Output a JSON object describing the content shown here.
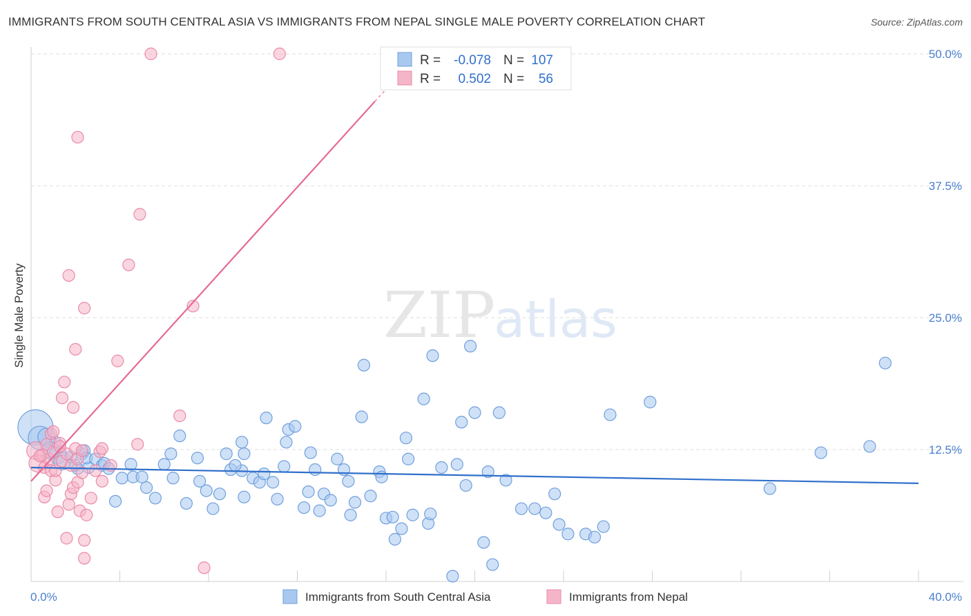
{
  "title": "IMMIGRANTS FROM SOUTH CENTRAL ASIA VS IMMIGRANTS FROM NEPAL SINGLE MALE POVERTY CORRELATION CHART",
  "source": "Source: ZipAtlas.com",
  "watermark": {
    "zip": "ZIP",
    "atlas": "atlas"
  },
  "colors": {
    "blue_fill": "#a8c8f0",
    "blue_stroke": "#6f9fdc",
    "blue_line": "#2f6fcb",
    "pink_fill": "#f5b5c8",
    "pink_stroke": "#e98aa8",
    "pink_line": "#e46a93",
    "tick_label": "#4a7fd0",
    "grid": "#dddddd"
  },
  "stats_box": {
    "rows": [
      {
        "r_label": "R =",
        "r_value": "-0.078",
        "n_label": "N =",
        "n_value": "107",
        "series": "blue"
      },
      {
        "r_label": "R =",
        "r_value": "0.502",
        "n_label": "N =",
        "n_value": "56",
        "series": "pink"
      }
    ]
  },
  "chart_data": {
    "type": "scatter",
    "title": "IMMIGRANTS FROM SOUTH CENTRAL ASIA VS IMMIGRANTS FROM NEPAL SINGLE MALE POVERTY CORRELATION CHART",
    "xlabel": "",
    "ylabel": "Single Male Poverty",
    "xlim": [
      0,
      40
    ],
    "ylim": [
      0,
      50
    ],
    "x_tick_labels": [
      "0.0%",
      "40.0%"
    ],
    "y_ticks": [
      12.5,
      25.0,
      37.5,
      50.0
    ],
    "y_tick_labels": [
      "12.5%",
      "25.0%",
      "37.5%",
      "50.0%"
    ],
    "grid": true,
    "legend_position": "bottom",
    "series": [
      {
        "name": "Immigrants from South Central Asia",
        "color": "#6f9fdc",
        "trend": {
          "x": [
            0,
            40
          ],
          "y": [
            10.8,
            9.3
          ]
        },
        "points": [
          [
            0.2,
            14.6,
            3
          ],
          [
            0.4,
            13.6,
            2
          ],
          [
            0.7,
            13.7,
            1.5
          ],
          [
            0.9,
            12.4,
            1.5
          ],
          [
            1.2,
            12.0,
            1.5
          ],
          [
            1.4,
            11.4,
            1.5
          ],
          [
            1.8,
            11.8,
            1
          ],
          [
            2.3,
            12.1,
            1
          ],
          [
            2.0,
            11.0,
            1
          ],
          [
            2.6,
            10.8,
            1
          ],
          [
            2.4,
            12.4,
            1
          ],
          [
            2.5,
            11.7,
            1
          ],
          [
            2.9,
            11.6,
            1
          ],
          [
            3.2,
            11.0,
            1
          ],
          [
            3.3,
            11.2,
            1
          ],
          [
            3.5,
            10.7,
            1
          ],
          [
            4.1,
            9.8,
            1
          ],
          [
            4.5,
            11.1,
            1
          ],
          [
            3.8,
            7.6,
            1
          ],
          [
            4.6,
            9.9,
            1
          ],
          [
            5.2,
            8.9,
            1
          ],
          [
            5.6,
            7.9,
            1
          ],
          [
            6.0,
            11.1,
            1
          ],
          [
            6.3,
            12.1,
            1
          ],
          [
            6.4,
            9.8,
            1
          ],
          [
            6.7,
            13.8,
            1
          ],
          [
            7.0,
            7.4,
            1
          ],
          [
            7.5,
            11.7,
            1
          ],
          [
            7.6,
            9.5,
            1
          ],
          [
            7.9,
            8.6,
            1
          ],
          [
            8.2,
            6.9,
            1
          ],
          [
            8.5,
            8.3,
            1
          ],
          [
            8.8,
            12.1,
            1
          ],
          [
            9.0,
            10.6,
            1
          ],
          [
            9.5,
            10.5,
            1
          ],
          [
            9.5,
            13.2,
            1
          ],
          [
            9.6,
            12.1,
            1
          ],
          [
            9.6,
            8.0,
            1
          ],
          [
            10.0,
            9.8,
            1
          ],
          [
            10.3,
            9.4,
            1
          ],
          [
            10.5,
            10.2,
            1
          ],
          [
            10.9,
            9.4,
            1
          ],
          [
            10.6,
            15.5,
            1
          ],
          [
            11.1,
            7.8,
            1
          ],
          [
            11.4,
            10.9,
            1
          ],
          [
            11.5,
            13.2,
            1
          ],
          [
            11.6,
            14.4,
            1
          ],
          [
            11.9,
            14.7,
            1
          ],
          [
            12.3,
            7.0,
            1
          ],
          [
            12.5,
            8.5,
            1
          ],
          [
            12.8,
            10.6,
            1
          ],
          [
            13.0,
            6.7,
            1
          ],
          [
            13.2,
            8.3,
            1
          ],
          [
            13.5,
            7.7,
            1
          ],
          [
            13.8,
            11.6,
            1
          ],
          [
            14.1,
            10.6,
            1
          ],
          [
            14.3,
            9.5,
            1
          ],
          [
            14.4,
            6.3,
            1
          ],
          [
            14.6,
            7.5,
            1
          ],
          [
            14.9,
            15.6,
            1
          ],
          [
            15.0,
            20.5,
            1
          ],
          [
            15.3,
            8.1,
            1
          ],
          [
            15.7,
            10.4,
            1
          ],
          [
            15.8,
            9.9,
            1
          ],
          [
            16.0,
            6.0,
            1
          ],
          [
            16.3,
            6.1,
            1
          ],
          [
            16.4,
            4.0,
            1
          ],
          [
            16.7,
            5.0,
            1
          ],
          [
            16.9,
            13.6,
            1
          ],
          [
            17.0,
            11.6,
            1
          ],
          [
            17.2,
            6.3,
            1
          ],
          [
            17.7,
            17.3,
            1
          ],
          [
            17.9,
            5.5,
            1
          ],
          [
            18.0,
            6.4,
            1
          ],
          [
            18.1,
            21.4,
            1
          ],
          [
            18.5,
            10.8,
            1
          ],
          [
            19.0,
            0.5,
            1
          ],
          [
            19.2,
            11.1,
            1
          ],
          [
            19.4,
            15.1,
            1
          ],
          [
            19.6,
            9.1,
            1
          ],
          [
            19.8,
            22.3,
            1
          ],
          [
            20.0,
            16.0,
            1
          ],
          [
            20.4,
            3.7,
            1
          ],
          [
            20.6,
            10.4,
            1
          ],
          [
            20.8,
            1.6,
            1
          ],
          [
            21.1,
            16.0,
            1
          ],
          [
            21.4,
            9.6,
            1
          ],
          [
            22.1,
            6.9,
            1
          ],
          [
            22.7,
            6.9,
            1
          ],
          [
            23.2,
            6.5,
            1
          ],
          [
            23.6,
            8.3,
            1
          ],
          [
            23.8,
            5.4,
            1
          ],
          [
            24.2,
            4.5,
            1
          ],
          [
            25.0,
            4.5,
            1
          ],
          [
            25.4,
            4.2,
            1
          ],
          [
            25.8,
            5.2,
            1
          ],
          [
            26.1,
            15.8,
            1
          ],
          [
            27.9,
            17.0,
            1
          ],
          [
            33.3,
            8.8,
            1
          ],
          [
            35.6,
            12.2,
            1
          ],
          [
            37.8,
            12.8,
            1
          ],
          [
            38.5,
            20.7,
            1
          ],
          [
            1.1,
            13.2,
            1
          ],
          [
            2.1,
            10.7,
            1
          ],
          [
            5.0,
            9.9,
            1
          ],
          [
            9.2,
            11.0,
            1
          ],
          [
            12.6,
            12.2,
            1
          ]
        ]
      },
      {
        "name": "Immigrants from Nepal",
        "color": "#e98aa8",
        "trend": {
          "x": [
            0,
            15.5
          ],
          "y": [
            9.5,
            45.5
          ],
          "dashed_to": {
            "x": 16.8,
            "y": 48.5
          }
        },
        "points": [
          [
            0.2,
            12.4,
            1.5
          ],
          [
            0.3,
            11.2,
            1.5
          ],
          [
            0.5,
            12.0,
            1
          ],
          [
            0.6,
            10.8,
            1
          ],
          [
            0.7,
            13.0,
            1
          ],
          [
            0.8,
            11.6,
            1
          ],
          [
            0.9,
            10.5,
            1
          ],
          [
            0.6,
            8.0,
            1
          ],
          [
            0.7,
            8.6,
            1
          ],
          [
            0.9,
            14.0,
            1
          ],
          [
            1.0,
            14.2,
            1
          ],
          [
            1.0,
            12.3,
            1
          ],
          [
            1.1,
            9.6,
            1
          ],
          [
            1.1,
            10.5,
            1
          ],
          [
            1.2,
            6.6,
            1
          ],
          [
            1.3,
            13.1,
            1
          ],
          [
            1.4,
            17.4,
            1
          ],
          [
            1.4,
            11.4,
            1
          ],
          [
            1.5,
            18.9,
            1
          ],
          [
            1.6,
            12.1,
            1
          ],
          [
            1.6,
            4.1,
            1
          ],
          [
            1.7,
            7.3,
            1
          ],
          [
            1.8,
            8.3,
            1
          ],
          [
            1.7,
            29.0,
            1
          ],
          [
            1.8,
            11.0,
            1
          ],
          [
            1.9,
            8.9,
            1
          ],
          [
            1.9,
            16.5,
            1
          ],
          [
            2.0,
            22.0,
            1
          ],
          [
            2.0,
            12.6,
            1
          ],
          [
            2.1,
            11.6,
            1
          ],
          [
            2.1,
            9.4,
            1
          ],
          [
            2.2,
            6.7,
            1
          ],
          [
            2.3,
            12.4,
            1
          ],
          [
            2.1,
            42.1,
            1
          ],
          [
            2.3,
            10.3,
            1
          ],
          [
            2.4,
            2.2,
            1
          ],
          [
            2.4,
            3.9,
            1
          ],
          [
            2.4,
            25.9,
            1
          ],
          [
            2.5,
            6.3,
            1
          ],
          [
            2.7,
            7.9,
            1
          ],
          [
            2.9,
            10.5,
            1
          ],
          [
            3.1,
            12.3,
            1
          ],
          [
            3.2,
            9.5,
            1
          ],
          [
            3.2,
            12.6,
            1
          ],
          [
            3.6,
            11.0,
            1
          ],
          [
            3.9,
            20.9,
            1
          ],
          [
            4.4,
            30.0,
            1
          ],
          [
            4.8,
            13.0,
            1
          ],
          [
            4.9,
            34.8,
            1
          ],
          [
            5.4,
            50.0,
            1
          ],
          [
            6.7,
            15.7,
            1
          ],
          [
            7.3,
            26.1,
            1
          ],
          [
            7.8,
            1.3,
            1
          ],
          [
            11.2,
            50.0,
            1
          ],
          [
            1.3,
            12.8,
            1
          ],
          [
            0.4,
            11.9,
            1
          ]
        ]
      }
    ]
  }
}
